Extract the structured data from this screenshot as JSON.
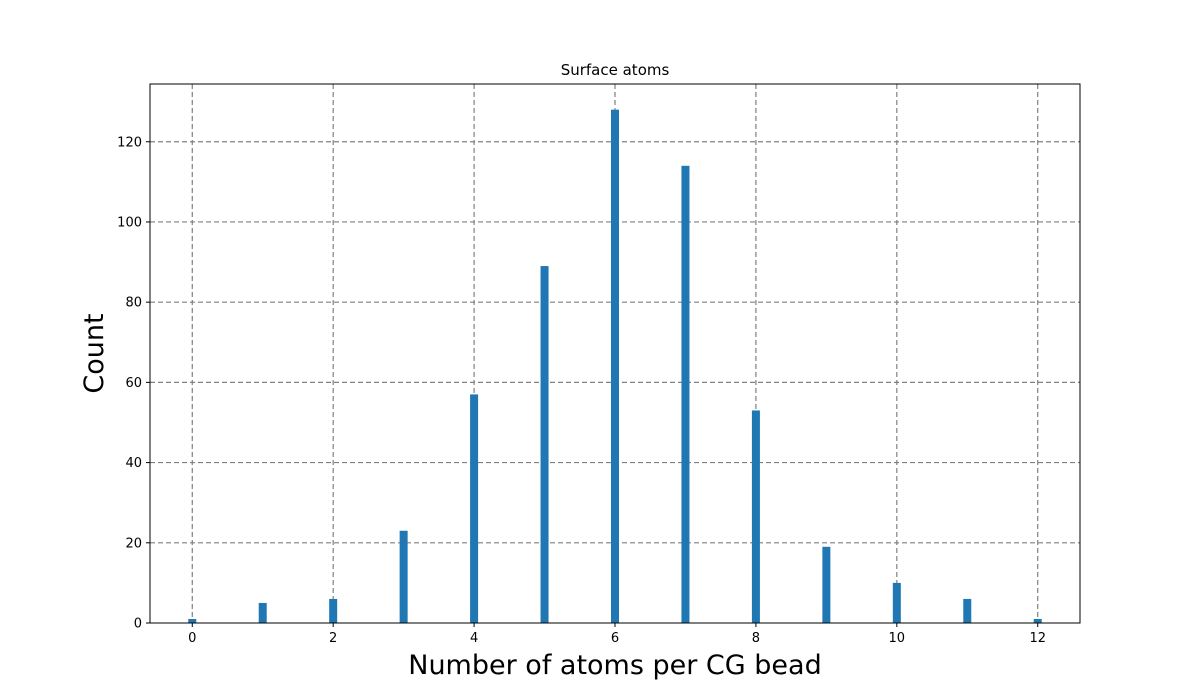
{
  "chart_data": {
    "type": "bar",
    "title": "Surface atoms",
    "xlabel": "Number of atoms per CG bead",
    "ylabel": "Count",
    "x": [
      0,
      1,
      2,
      3,
      4,
      5,
      6,
      7,
      8,
      9,
      10,
      11,
      12
    ],
    "values": [
      1,
      5,
      6,
      23,
      57,
      89,
      128,
      114,
      53,
      19,
      10,
      6,
      1
    ],
    "xlim": [
      -0.6,
      12.6
    ],
    "ylim": [
      0,
      134.4
    ],
    "xticks": [
      0,
      2,
      4,
      6,
      8,
      10,
      12
    ],
    "yticks": [
      0,
      20,
      40,
      60,
      80,
      100,
      120
    ],
    "grid": true,
    "bar_color": "#1f77b4",
    "grid_color": "#808080"
  }
}
